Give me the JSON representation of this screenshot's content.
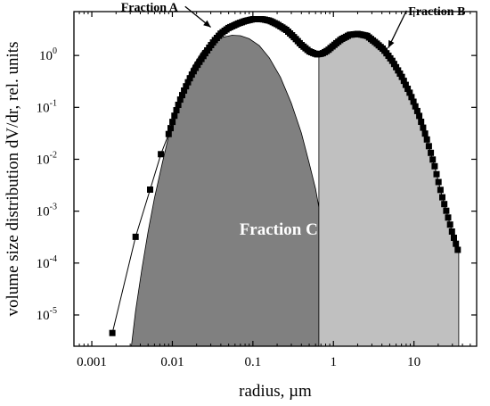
{
  "chart_data": {
    "type": "scatter",
    "xlabel": "radius, µm",
    "ylabel": "volume size distribution dV/dr, rel. units",
    "xscale": "log",
    "yscale": "log",
    "xlim": [
      0.0006,
      60
    ],
    "ylim": [
      2.5e-06,
      7
    ],
    "grid": false,
    "x_ticks": [
      {
        "value": 0.001,
        "label": "0.001"
      },
      {
        "value": 0.01,
        "label": "0.01"
      },
      {
        "value": 0.1,
        "label": "0.1"
      },
      {
        "value": 1,
        "label": "1"
      },
      {
        "value": 10,
        "label": "10"
      }
    ],
    "y_ticks": [
      {
        "value": 1e-05,
        "base": "10",
        "exp": "-5"
      },
      {
        "value": 0.0001,
        "base": "10",
        "exp": "-4"
      },
      {
        "value": 0.001,
        "base": "10",
        "exp": "-3"
      },
      {
        "value": 0.01,
        "base": "10",
        "exp": "-2"
      },
      {
        "value": 0.1,
        "base": "10",
        "exp": "-1"
      },
      {
        "value": 1,
        "base": "10",
        "exp": "0"
      }
    ],
    "annotations": [
      {
        "text": "Fraction A",
        "x": 0.0023,
        "y": 7.2,
        "arrow_to": [
          0.03,
          3.5
        ]
      },
      {
        "text": "Fraction B",
        "x": 8.5,
        "y": 6.0,
        "arrow_to": [
          4.8,
          1.4
        ]
      },
      {
        "text": "Fraction C",
        "x": 0.068,
        "y": 0.00035
      }
    ],
    "series": [
      {
        "role": "measured",
        "style": "squares",
        "x": [
          0.0018,
          0.0035,
          0.0053,
          0.0072,
          0.0091,
          0.0108,
          0.0125,
          0.0145,
          0.017,
          0.02,
          0.024,
          0.028,
          0.033,
          0.04,
          0.05,
          0.065,
          0.08,
          0.1,
          0.13,
          0.16,
          0.2,
          0.26,
          0.32,
          0.4,
          0.5,
          0.62,
          0.72,
          0.85,
          1.0,
          1.25,
          1.6,
          2.0,
          2.6,
          3.3,
          4.2,
          5.4,
          7.0,
          9.0,
          11.5,
          14.5,
          18.0,
          22.0,
          26.0,
          30.0,
          35.0
        ],
        "y": [
          4.5e-06,
          0.00032,
          0.0026,
          0.0125,
          0.032,
          0.075,
          0.14,
          0.24,
          0.4,
          0.62,
          0.95,
          1.35,
          1.9,
          2.65,
          3.4,
          4.1,
          4.6,
          5.0,
          5.0,
          4.7,
          4.0,
          3.1,
          2.3,
          1.6,
          1.2,
          1.05,
          1.08,
          1.25,
          1.55,
          2.05,
          2.5,
          2.6,
          2.4,
          1.8,
          1.3,
          0.78,
          0.4,
          0.18,
          0.072,
          0.024,
          0.0075,
          0.0021,
          0.00085,
          0.00038,
          0.00018
        ]
      },
      {
        "name": "Fraction C",
        "role": "fraction",
        "fill": "#808080",
        "x": [
          0.0031,
          0.0035,
          0.0042,
          0.005,
          0.006,
          0.0075,
          0.009,
          0.011,
          0.014,
          0.018,
          0.023,
          0.03,
          0.04,
          0.055,
          0.07,
          0.09,
          0.12,
          0.16,
          0.22,
          0.3,
          0.4,
          0.5,
          0.6,
          0.66
        ],
        "y": [
          2.5e-06,
          1.2e-05,
          8e-05,
          0.0004,
          0.0018,
          0.0085,
          0.028,
          0.085,
          0.26,
          0.62,
          1.15,
          1.75,
          2.2,
          2.45,
          2.4,
          2.1,
          1.55,
          0.9,
          0.38,
          0.12,
          0.032,
          0.0085,
          0.0027,
          0.0012
        ]
      },
      {
        "name": "Fraction B",
        "role": "fraction",
        "fill": "#c0c0c0",
        "x": [
          0.66,
          0.8,
          1.0,
          1.25,
          1.6,
          2.0,
          2.6,
          3.3,
          4.2,
          5.4,
          7.0,
          9.0,
          11.5,
          14.5,
          18.0,
          22.0,
          26.0,
          30.0,
          35.0,
          36.0
        ],
        "y": [
          1.05,
          1.2,
          1.55,
          2.05,
          2.5,
          2.6,
          2.4,
          1.8,
          1.3,
          0.78,
          0.4,
          0.18,
          0.072,
          0.024,
          0.0075,
          0.0021,
          0.00085,
          0.00038,
          0.00018,
          0.00018
        ]
      }
    ]
  }
}
